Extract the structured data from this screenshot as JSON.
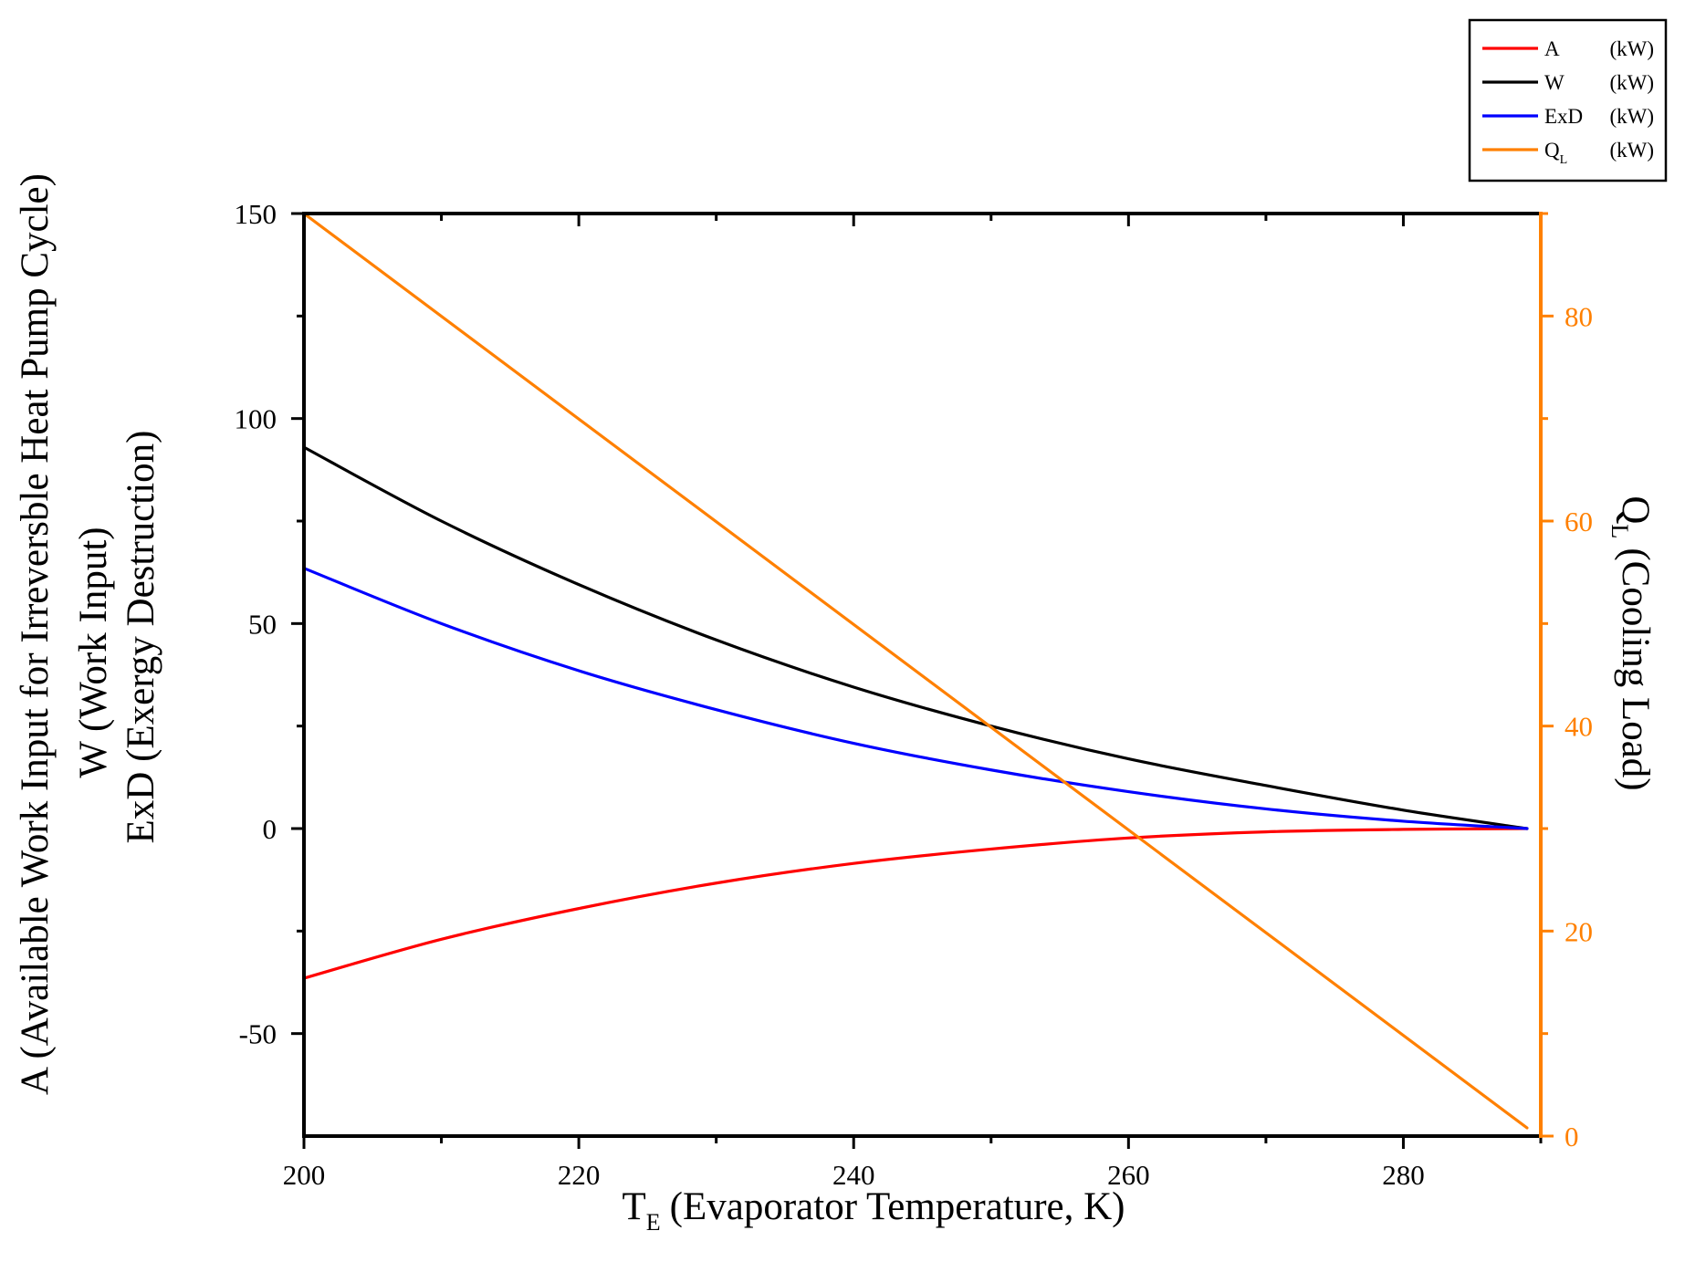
{
  "chart_data": {
    "type": "line",
    "x_axis": {
      "label_main": "T",
      "label_sub": "E",
      "label_rest": "(Evaporator Temperature, K)",
      "range": [
        200,
        290
      ],
      "major_ticks": [
        200,
        220,
        240,
        260,
        280
      ],
      "minor_ticks": [
        210,
        230,
        250,
        270,
        290
      ],
      "tick_labels": [
        "200",
        "220",
        "240",
        "260",
        "280"
      ]
    },
    "y_left": {
      "label_lines": [
        "A (Available Work Input for Irreversble Heat Pump Cycle)",
        "W  (Work Input)",
        "ExD (Exergy Destruction)"
      ],
      "range": [
        -75,
        150
      ],
      "major_ticks": [
        -50,
        0,
        50,
        100,
        150
      ],
      "minor_ticks": [
        -25,
        25,
        75,
        125
      ],
      "tick_labels": [
        "-50",
        "0",
        "50",
        "100",
        "150"
      ]
    },
    "y_right": {
      "label_main": "Q",
      "label_sub": "L",
      "label_rest": "(Cooling Load)",
      "range": [
        0,
        90
      ],
      "major_ticks": [
        0,
        20,
        40,
        60,
        80
      ],
      "minor_ticks": [
        10,
        30,
        50,
        70,
        90
      ],
      "tick_labels": [
        "0",
        "20",
        "40",
        "60",
        "80"
      ],
      "color": "#ff8000"
    },
    "legend": {
      "placement": "top-right",
      "entries": [
        {
          "key": "A",
          "name": "A",
          "sub": "",
          "unit": "(kW)",
          "color": "#ff0000"
        },
        {
          "key": "W",
          "name": "W",
          "sub": "",
          "unit": "(kW)",
          "color": "#000000"
        },
        {
          "key": "ExD",
          "name": "ExD",
          "sub": "",
          "unit": "(kW)",
          "color": "#0000ff"
        },
        {
          "key": "QL",
          "name": "Q",
          "sub": "L",
          "unit": "(kW)",
          "color": "#ff8000"
        }
      ]
    },
    "series": [
      {
        "key": "A",
        "name": "A (kW)",
        "axis": "left",
        "color": "#ff0000",
        "x": [
          200,
          210,
          220,
          230,
          240,
          250,
          260,
          270,
          280,
          289
        ],
        "y": [
          -36.5,
          -27,
          -19.5,
          -13.3,
          -8.5,
          -5,
          -2.3,
          -0.8,
          -0.2,
          0
        ]
      },
      {
        "key": "W",
        "name": "W (kW)",
        "axis": "left",
        "color": "#000000",
        "x": [
          200,
          210,
          220,
          230,
          240,
          250,
          260,
          270,
          280,
          289
        ],
        "y": [
          93,
          75,
          59.5,
          46,
          34.5,
          25,
          17,
          10.5,
          4.5,
          0
        ]
      },
      {
        "key": "ExD",
        "name": "ExD (kW)",
        "axis": "left",
        "color": "#0000ff",
        "x": [
          200,
          210,
          220,
          230,
          240,
          250,
          260,
          270,
          280,
          289
        ],
        "y": [
          63.5,
          50,
          38.5,
          29,
          20.8,
          14.3,
          9,
          4.8,
          1.8,
          0
        ]
      },
      {
        "key": "QL",
        "name": "QL (kW)",
        "axis": "right",
        "color": "#ff8000",
        "x": [
          200,
          289
        ],
        "y": [
          90,
          0.8
        ]
      }
    ]
  }
}
